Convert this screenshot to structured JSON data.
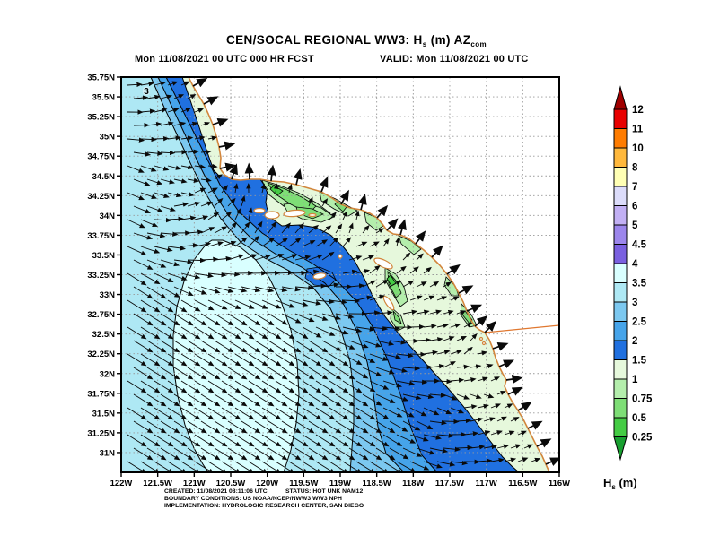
{
  "title": {
    "prefix": "CEN/SOCAL REGIONAL WW3: H",
    "sub1": "s",
    "mid": " (m) AZ",
    "sub2": "com"
  },
  "subtitle": {
    "left": "Mon 11/08/2021 00 UTC 000 HR FCST",
    "right": "VALID: Mon 11/08/2021 00 UTC"
  },
  "footer": {
    "line1_blue": "CREATED: 11/08/2021 08:11:06 UTC",
    "line1_red": "STATUS: HOT UNK NAM12",
    "line2": "BOUNDARY CONDITIONS: US NOAA/NCEP/NWW3 WW3 NPH",
    "line3": "IMPLEMENTATION: HYDROLOGIC RESEARCH CENTER, SAN DIEGO",
    "blue_color": "#2233bb",
    "red_color": "#e81e1e"
  },
  "axes": {
    "lat_ticks": [
      "35.75N",
      "35.5N",
      "35.25N",
      "35N",
      "34.75N",
      "34.5N",
      "34.25N",
      "34N",
      "33.75N",
      "33.5N",
      "33.25N",
      "33N",
      "32.75N",
      "32.5N",
      "32.25N",
      "32N",
      "31.75N",
      "31.5N",
      "31.25N",
      "31N"
    ],
    "lon_ticks": [
      "122W",
      "121.5W",
      "121W",
      "120.5W",
      "120W",
      "119.5W",
      "119W",
      "118.5W",
      "118W",
      "117.5W",
      "117W",
      "116.5W",
      "116W"
    ]
  },
  "colorbar": {
    "title_prefix": "H",
    "title_sub": "s",
    "title_suffix": " (m)",
    "boundary_labels": [
      "12",
      "11",
      "10",
      "8",
      "7",
      "6",
      "5",
      "4.5",
      "4",
      "3.5",
      "3",
      "2.5",
      "2",
      "1.5",
      "1",
      "0.75",
      "0.5",
      "0.25"
    ],
    "segment_colors_top_to_bottom": [
      "#e80000",
      "#ff7c00",
      "#ffb83c",
      "#ffffb4",
      "#dcdcfa",
      "#c2b0f4",
      "#9c86ec",
      "#7a60e0",
      "#d9ffff",
      "#aee8f4",
      "#7cc8f0",
      "#46a4ea",
      "#2070e0",
      "#e6f8dc",
      "#b4eeac",
      "#7ede76",
      "#44cc44"
    ],
    "over_color": "#a00000",
    "under_color": "#18a030"
  },
  "contour_label": "3",
  "map_colors": {
    "coastline": "#d2863c",
    "border_line": "#e07830",
    "contour": "#000000",
    "land": "#ffffff",
    "grid": "#999999"
  },
  "chart_data": {
    "type": "heatmap",
    "subtype": "filled_contour_map_with_direction_vectors",
    "variable": "significant wave height Hs (m), WaveWatch III regional model",
    "region": "CEN/SOCAL (Central / Southern California coast and Northern Baja)",
    "forecast": {
      "init": "Mon 11/08/2021 00 UTC",
      "lead": "000 HR FCST",
      "valid": "Mon 11/08/2021 00 UTC"
    },
    "lon_ticks_deg_w": [
      122,
      121.5,
      121,
      120.5,
      120,
      119.5,
      119,
      118.5,
      118,
      117.5,
      117,
      116.5,
      116
    ],
    "lat_ticks_deg_n": [
      35.75,
      35.5,
      35.25,
      35,
      34.75,
      34.5,
      34.25,
      34,
      33.75,
      33.5,
      33.25,
      33,
      32.75,
      32.5,
      32.25,
      32,
      31.75,
      31.5,
      31.25,
      31
    ],
    "contour_levels_m": [
      0.25,
      0.5,
      0.75,
      1,
      1.5,
      2,
      2.5,
      3,
      3.5,
      4,
      4.5,
      5,
      6,
      7,
      8,
      10,
      11,
      12
    ],
    "labeled_contour": {
      "value_m": 3,
      "approx_location": "121.6W 35.5N"
    },
    "field_values_by_region_m": {
      "offshore_southwest_maximum": "3.5-4",
      "outer_waters_northwest": "3-3.5",
      "mid_shelf_bands": "2-3",
      "band_fronting_socal_bight": "1.5-2",
      "socal_bight_and_baja_coastal_strip": "1-1.5",
      "santa_barbara_channel_and_island_lees": "0.5-1",
      "sheltered_lee_minima": "0.25-0.5"
    },
    "wave_direction_vectors": {
      "offshore": "uniform arrows toward ESE-SE (swell from NW)",
      "nearshore": "arrows rotate onshore, pointing N-NE within the Southern California Bight and along the Baja coast",
      "coastal_indicators": "bold arrows at shoreline pointing onshore"
    },
    "geography_shown": "California coastline Pt. Conception to Northern Baja, Channel Islands (San Miguel, Santa Rosa, Santa Cruz, Anacapa, Santa Barbara, San Nicolas, Santa Catalina, San Clemente), US-Mexico border line",
    "legend_position": "vertical colorbar right side, labeled Hs (m)",
    "grid": "dotted graticule every 0.25 deg lat / 0.5 deg lon"
  }
}
